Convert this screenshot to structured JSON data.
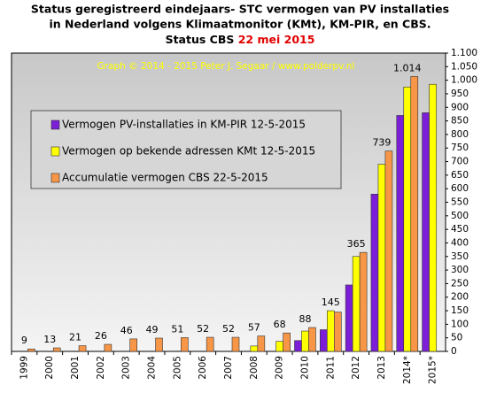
{
  "chart_data": {
    "type": "bar",
    "title": [
      "Status geregistreerd  eindejaars-  STC vermogen van PV installaties",
      "in Nederland volgens Klimaatmonitor  (KMt), KM-PIR,  en CBS.",
      "Status CBS"
    ],
    "title_highlight": "22 mei 2015",
    "subtitle": "Graph © 2014 - 2015 Peter J. Segaar / www.polderpv.nl",
    "categories": [
      "1999",
      "2000",
      "2001",
      "2002",
      "2003",
      "2004",
      "2005",
      "2006",
      "2007",
      "2008",
      "2009",
      "2010",
      "2011",
      "2012",
      "2013",
      "2014*",
      "2015*"
    ],
    "series": [
      {
        "name": "Vermogen PV-installaties in KM-PIR 12-5-2015",
        "color": "#7b1fd6",
        "values": [
          null,
          null,
          null,
          null,
          null,
          null,
          null,
          null,
          null,
          null,
          null,
          40,
          80,
          245,
          580,
          870,
          880
        ]
      },
      {
        "name": "Vermogen op bekende adressen KMt 12-5-2015",
        "color": "#ffff00",
        "values": [
          null,
          null,
          null,
          null,
          null,
          null,
          null,
          null,
          null,
          20,
          37,
          75,
          150,
          350,
          690,
          975,
          985
        ]
      },
      {
        "name": "Accumulatie vermogen CBS 22-5-2015",
        "color": "#f79646",
        "values": [
          9,
          13,
          21,
          26,
          46,
          49,
          51,
          52,
          52,
          57,
          68,
          88,
          145,
          365,
          739,
          1014,
          null
        ],
        "value_labels": [
          "9",
          "13",
          "21",
          "26",
          "46",
          "49",
          "51",
          "52",
          "52",
          "57",
          "68",
          "88",
          "145",
          "365",
          "739",
          "1.014",
          null
        ]
      }
    ],
    "ylim": [
      0,
      1100
    ],
    "yticks": [
      0,
      50,
      100,
      150,
      200,
      250,
      300,
      350,
      400,
      450,
      500,
      550,
      600,
      650,
      700,
      750,
      800,
      850,
      900,
      950,
      {
        "value": 1000,
        "label": "1.000"
      },
      {
        "value": 1050,
        "label": "1.050"
      },
      {
        "value": 1100,
        "label": "1.100"
      }
    ],
    "grid": false
  }
}
